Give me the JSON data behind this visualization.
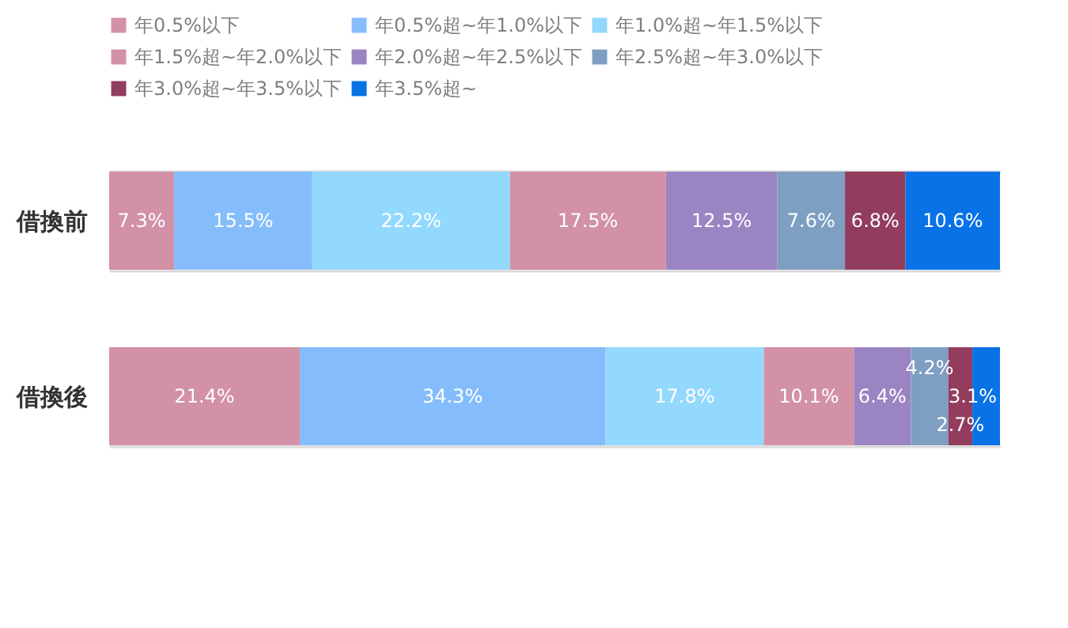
{
  "chart_data": {
    "type": "bar",
    "orientation": "horizontal",
    "stacked": true,
    "grid": "y",
    "legend": "top",
    "tick_labels": "y",
    "categories": [
      "借換前",
      "借換後"
    ],
    "series": [
      {
        "name": "年0.5%以下",
        "color": "#d291a5",
        "values": [
          7.3,
          21.4
        ],
        "value_labels": [
          "7.3%",
          "21.4%"
        ]
      },
      {
        "name": "年0.5%超~年1.0%以下",
        "color": "#85bdfc",
        "values": [
          15.5,
          34.3
        ],
        "value_labels": [
          "15.5%",
          "34.3%"
        ]
      },
      {
        "name": "年1.0%超~年1.5%以下",
        "color": "#93d8fd",
        "values": [
          22.2,
          17.8
        ],
        "value_labels": [
          "22.2%",
          "17.8%"
        ]
      },
      {
        "name": "年1.5%超~年2.0%以下",
        "color": "#d291a5",
        "values": [
          17.5,
          10.1
        ],
        "value_labels": [
          "17.5%",
          "10.1%"
        ]
      },
      {
        "name": "年2.0%超~年2.5%以下",
        "color": "#9b84c2",
        "values": [
          12.5,
          6.4
        ],
        "value_labels": [
          "12.5%",
          "6.4%"
        ]
      },
      {
        "name": "年2.5%超~年3.0%以下",
        "color": "#7e9fc2",
        "values": [
          7.6,
          4.2
        ],
        "value_labels": [
          "7.6%",
          "4.2%"
        ]
      },
      {
        "name": "年3.0%超~年3.5%以下",
        "color": "#923d5e",
        "values": [
          6.8,
          2.7
        ],
        "value_labels": [
          "6.8%",
          "2.7%"
        ]
      },
      {
        "name": "年3.5%超~",
        "color": "#0872e6",
        "values": [
          10.6,
          3.1
        ],
        "value_labels": [
          "10.6%",
          "3.1%"
        ]
      }
    ]
  }
}
